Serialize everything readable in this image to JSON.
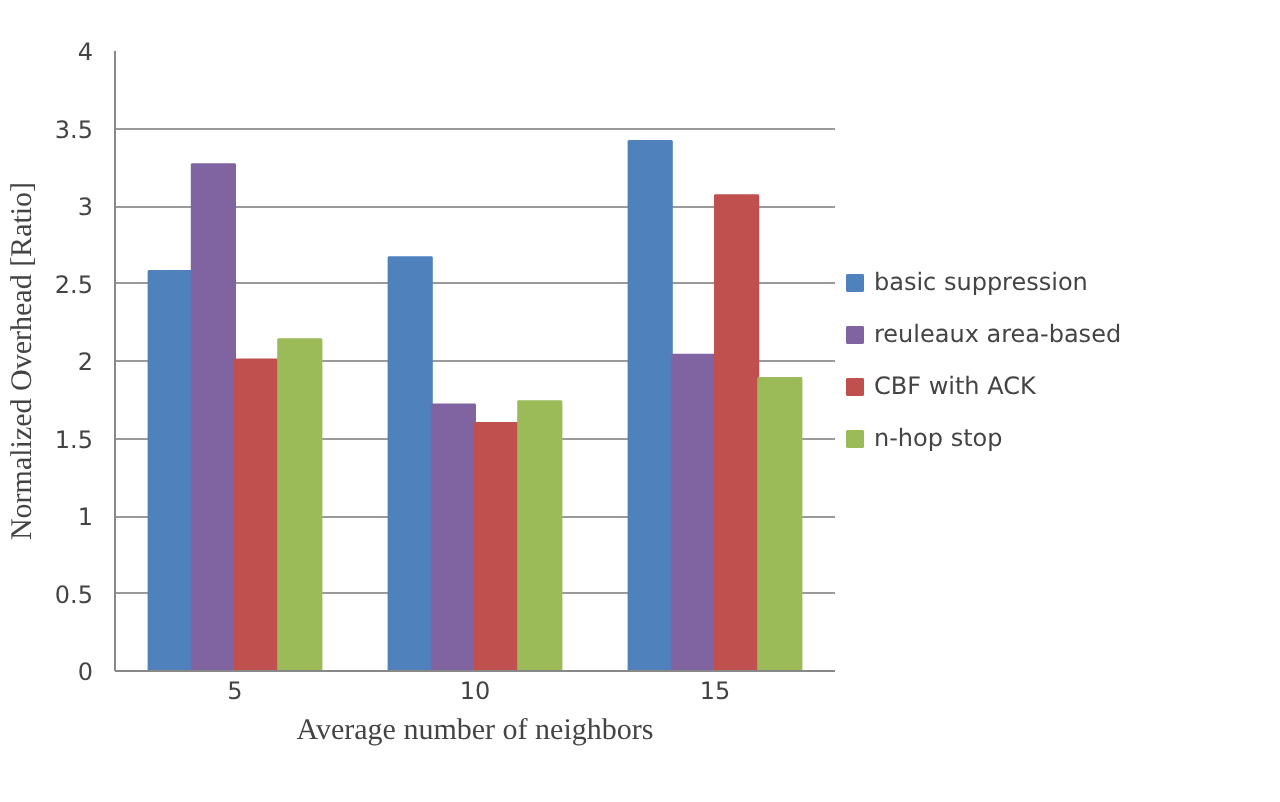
{
  "chart_data": {
    "type": "bar",
    "xlabel": "Average number of neighbors",
    "ylabel": "Normalized Overhead [Ratio]",
    "categories": [
      "5",
      "10",
      "15"
    ],
    "series": [
      {
        "name": "basic suppression",
        "color": "#4f81bd",
        "values": [
          2.58,
          2.67,
          3.42
        ]
      },
      {
        "name": "reuleaux area-based",
        "color": "#8064a2",
        "values": [
          3.27,
          1.72,
          2.04
        ]
      },
      {
        "name": "CBF with ACK",
        "color": "#c0504d",
        "values": [
          2.01,
          1.6,
          3.07
        ]
      },
      {
        "name": "n-hop stop",
        "color": "#9bbb59",
        "values": [
          2.14,
          1.74,
          1.89
        ]
      }
    ],
    "ylim": [
      0,
      4
    ],
    "yticks": [
      0,
      0.5,
      1,
      1.5,
      2,
      2.5,
      3,
      3.5,
      4
    ],
    "grid": "y",
    "legend": "right"
  }
}
